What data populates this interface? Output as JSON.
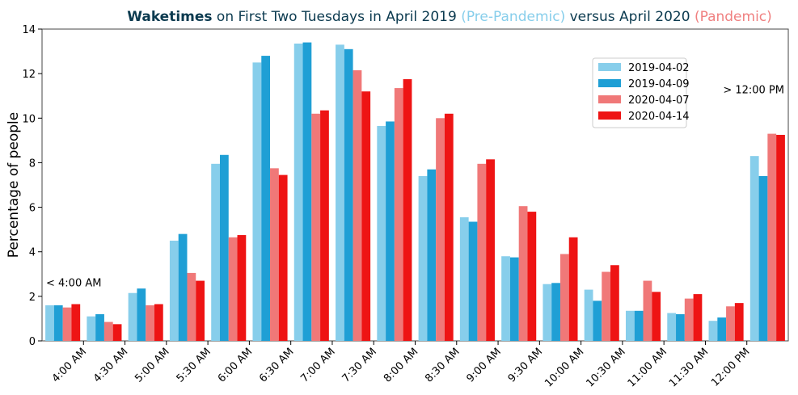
{
  "chart_data": {
    "type": "bar",
    "title_parts": [
      {
        "text": "Waketimes",
        "color": "#0b3a4f",
        "bold": true
      },
      {
        "text": " on First Two Tuesdays in April 2019 ",
        "color": "#0b3a4f",
        "bold": false
      },
      {
        "text": "(Pre-Pandemic)",
        "color": "#87ceeb",
        "bold": false
      },
      {
        "text": " versus April 2020 ",
        "color": "#0b3a4f",
        "bold": false
      },
      {
        "text": "(Pandemic)",
        "color": "#f08080",
        "bold": false
      }
    ],
    "y_label": "Percentage of people",
    "xtick_labels": [
      "4:00 AM",
      "4:30 AM",
      "5:00 AM",
      "5:30 AM",
      "6:00 AM",
      "6:30 AM",
      "7:00 AM",
      "7:30 AM",
      "8:00 AM",
      "8:30 AM",
      "9:00 AM",
      "9:30 AM",
      "10:00 AM",
      "10:30 AM",
      "11:00 AM",
      "11:30 AM",
      "12:00 PM"
    ],
    "annotations": [
      "< 4:00 AM",
      "> 12:00 PM"
    ],
    "series": [
      {
        "name": "2019-04-02",
        "color": "#87ceeb",
        "values": [
          1.6,
          1.1,
          2.15,
          4.5,
          7.95,
          12.5,
          13.35,
          13.3,
          9.65,
          7.4,
          5.55,
          3.8,
          2.55,
          2.3,
          1.35,
          1.25,
          0.9,
          8.3
        ]
      },
      {
        "name": "2019-04-09",
        "color": "#1f9fd5",
        "values": [
          1.6,
          1.2,
          2.35,
          4.8,
          8.35,
          12.8,
          13.4,
          13.1,
          9.85,
          7.7,
          5.35,
          3.75,
          2.6,
          1.8,
          1.35,
          1.2,
          1.05,
          7.4
        ]
      },
      {
        "name": "2020-04-07",
        "color": "#f07878",
        "values": [
          1.5,
          0.85,
          1.6,
          3.05,
          4.65,
          7.75,
          10.2,
          12.15,
          11.35,
          10.0,
          7.95,
          6.05,
          3.9,
          3.1,
          2.7,
          1.9,
          1.55,
          9.3
        ]
      },
      {
        "name": "2020-04-14",
        "color": "#ee1414",
        "values": [
          1.65,
          0.75,
          1.65,
          2.7,
          4.75,
          7.45,
          10.35,
          11.2,
          11.75,
          10.2,
          8.15,
          5.8,
          4.65,
          3.4,
          2.2,
          2.1,
          1.7,
          9.25
        ]
      }
    ],
    "ylim": [
      0,
      14
    ],
    "yticks": [
      0,
      2,
      4,
      6,
      8,
      10,
      12,
      14
    ],
    "grid": false,
    "legend": "upper right"
  }
}
